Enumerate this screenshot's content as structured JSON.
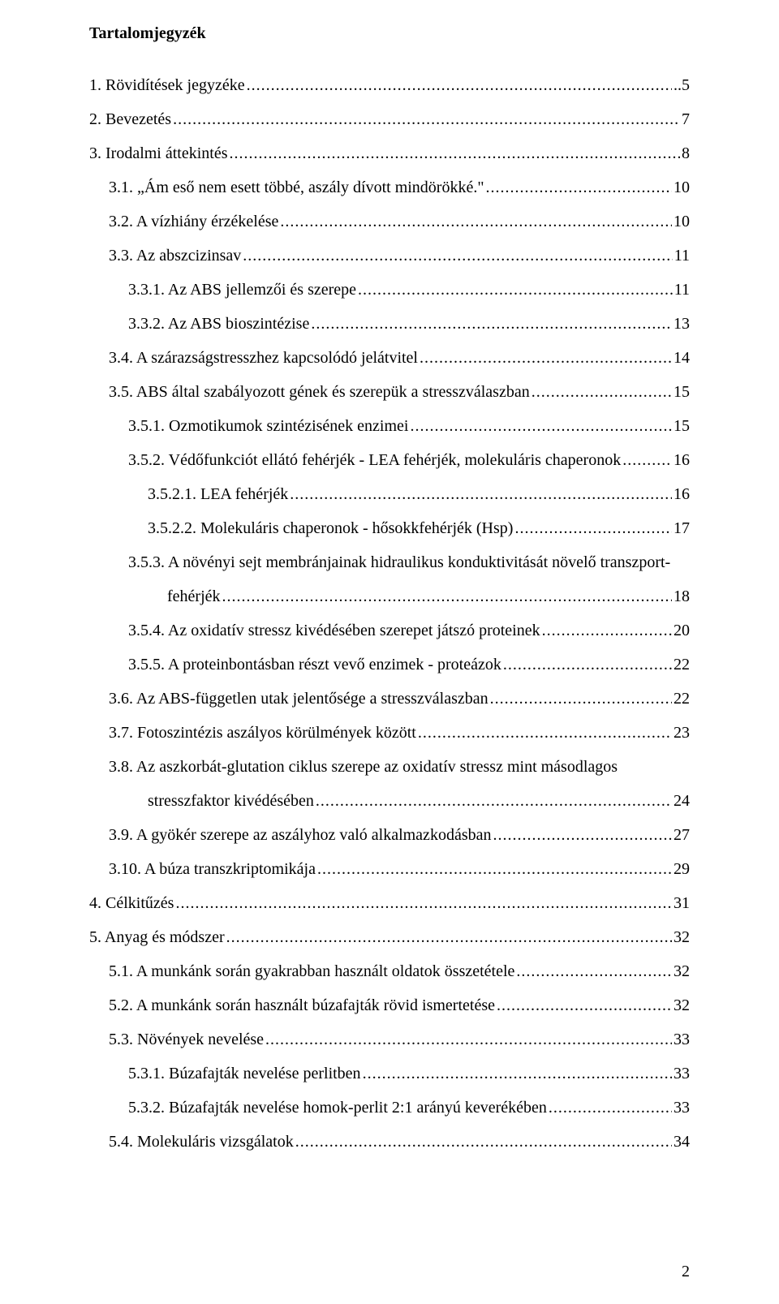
{
  "title": "Tartalomjegyzék",
  "page_number": "2",
  "colors": {
    "text": "#000000",
    "background": "#ffffff"
  },
  "typography": {
    "font_family": "Times New Roman",
    "title_fontsize_pt": 15,
    "body_fontsize_pt": 15,
    "title_weight": "bold"
  },
  "toc": [
    {
      "indent": 0,
      "label": "1. Rövidítések jegyzéke",
      "page": "..5"
    },
    {
      "indent": 0,
      "label": "2. Bevezetés",
      "page": "7"
    },
    {
      "indent": 0,
      "label": "3. Irodalmi áttekintés",
      "page": "8"
    },
    {
      "indent": 1,
      "label": "3.1. „Ám eső nem esett többé, aszály dívott mindörökké.\"",
      "page": "10"
    },
    {
      "indent": 1,
      "label": "3.2. A vízhiány érzékelése",
      "page": "10"
    },
    {
      "indent": 1,
      "label": "3.3. Az abszcizinsav",
      "page": "11"
    },
    {
      "indent": 2,
      "label": "3.3.1. Az ABS jellemzői és szerepe",
      "page": "11"
    },
    {
      "indent": 2,
      "label": "3.3.2. Az ABS bioszintézise",
      "page": "13"
    },
    {
      "indent": 1,
      "label": "3.4. A szárazságstresszhez kapcsolódó jelátvitel",
      "page": "14"
    },
    {
      "indent": 1,
      "label": "3.5. ABS által szabályozott gének és szerepük a stresszválaszban",
      "page": "15"
    },
    {
      "indent": 2,
      "label": "3.5.1. Ozmotikumok szintézisének enzimei",
      "page": "15"
    },
    {
      "indent": 2,
      "label": "3.5.2. Védőfunkciót ellátó fehérjék - LEA fehérjék, molekuláris chaperonok",
      "page": "16"
    },
    {
      "indent": 3,
      "label": "3.5.2.1. LEA fehérjék",
      "page": "16"
    },
    {
      "indent": 3,
      "label": "3.5.2.2. Molekuláris chaperonok - hősokkfehérjék (Hsp)",
      "page": "17"
    },
    {
      "indent": 2,
      "wrap": true,
      "label1": "3.5.3. A növényi sejt membránjainak hidraulikus konduktivitását növelő transzport-",
      "label2_indent": 4,
      "label2": "fehérjék",
      "page": "18"
    },
    {
      "indent": 2,
      "label": "3.5.4. Az oxidatív stressz kivédésében szerepet játszó proteinek",
      "page": "20"
    },
    {
      "indent": 2,
      "label": "3.5.5. A proteinbontásban részt vevő enzimek - proteázok",
      "page": "22"
    },
    {
      "indent": 1,
      "label": "3.6. Az ABS-független utak jelentősége a stresszválaszban",
      "page": "22"
    },
    {
      "indent": 1,
      "label": "3.7. Fotoszintézis aszályos körülmények között",
      "page": "23"
    },
    {
      "indent": 1,
      "wrap": true,
      "label1": "3.8. Az aszkorbát-glutation ciklus szerepe az oxidatív stressz mint másodlagos",
      "label2_indent": 3,
      "label2": "stresszfaktor kivédésében",
      "page": "24"
    },
    {
      "indent": 1,
      "label": "3.9. A gyökér szerepe az aszályhoz való alkalmazkodásban",
      "page": "27"
    },
    {
      "indent": 1,
      "label": "3.10. A búza transzkriptomikája",
      "page": "29"
    },
    {
      "indent": 0,
      "label": "4. Célkitűzés",
      "page": "31"
    },
    {
      "indent": 0,
      "label": "5. Anyag és módszer",
      "page": "32"
    },
    {
      "indent": 1,
      "label": "5.1. A munkánk során gyakrabban használt oldatok összetétele",
      "page": "32"
    },
    {
      "indent": 1,
      "label": "5.2. A munkánk során használt búzafajták rövid ismertetése",
      "page": "32"
    },
    {
      "indent": 1,
      "label": "5.3. Növények nevelése",
      "page": "33"
    },
    {
      "indent": 2,
      "label": "5.3.1. Búzafajták nevelése perlitben",
      "page": "33"
    },
    {
      "indent": 2,
      "label": "5.3.2. Búzafajták nevelése homok-perlit 2:1 arányú keverékében",
      "page": "33"
    },
    {
      "indent": 1,
      "label": "5.4. Molekuláris vizsgálatok",
      "page": "34"
    }
  ]
}
